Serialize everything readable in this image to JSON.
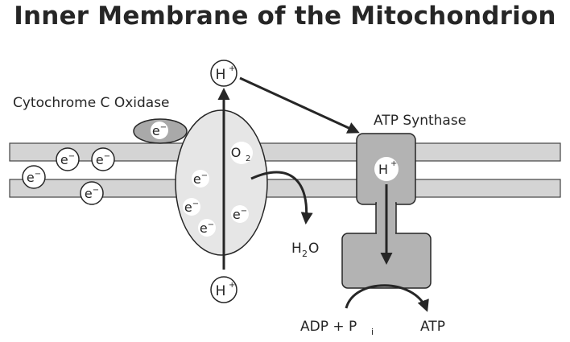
{
  "title": "Inner Membrane of the Mitochondrion",
  "labels": {
    "cytochrome": "Cytochrome C Oxidase",
    "atp_synthase": "ATP Synthase",
    "h2o_h": "H",
    "h2o_sub": "2",
    "h2o_o": "O",
    "adp_main": "ADP + P",
    "adp_sub": "i",
    "atp": "ATP"
  },
  "tokens": {
    "electron_base": "e",
    "electron_sup": "−",
    "proton_base": "H",
    "proton_sup": "+",
    "oxygen_base": "O",
    "oxygen_sub": "2"
  },
  "colors": {
    "membrane": "#d4d4d4",
    "oxidase_fill": "#e6e6e6",
    "enzyme_dark": "#a9a9a9",
    "synthase_fill": "#b3b3b3",
    "outline": "#262626",
    "background": "#ffffff"
  }
}
